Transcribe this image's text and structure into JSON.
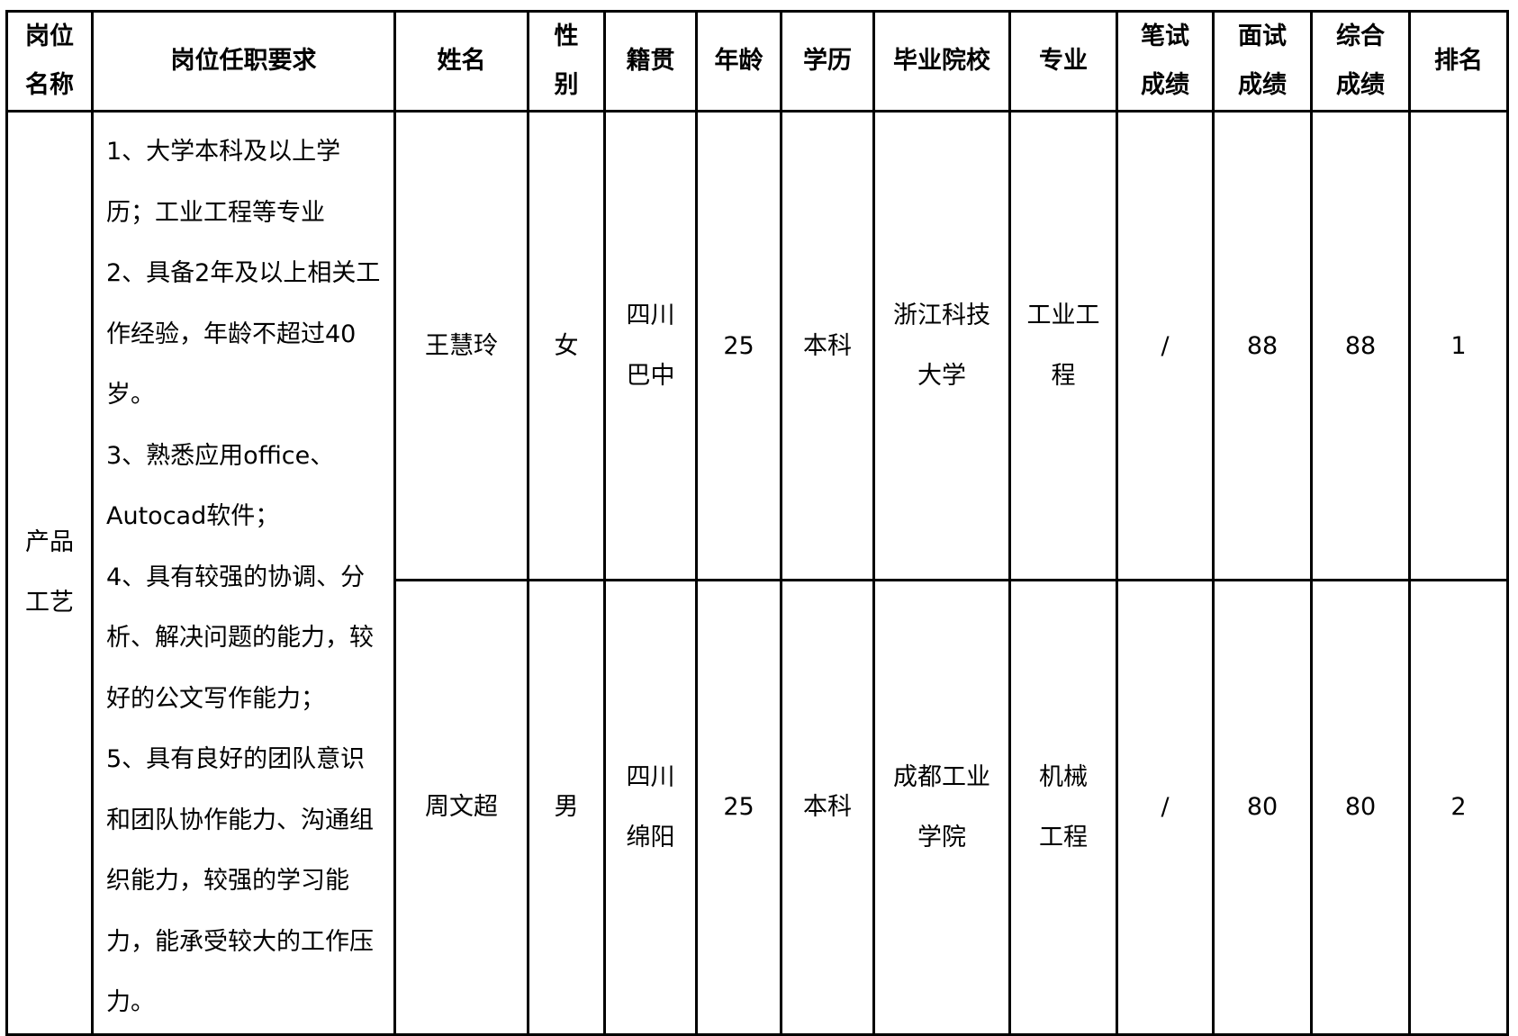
{
  "headers": [
    "岗位\n名称",
    "岗位任职要求",
    "姓名",
    "性\n别",
    "籍贯",
    "年龄",
    "学历",
    "毕业院校",
    "专业",
    "笔试\n成绩",
    "面试\n成绩",
    "综合\n成绩",
    "排名"
  ],
  "position": "产品\n工艺",
  "requirements_lines": [
    "1、大学本科及以上学",
    "历；工业工程等专业",
    "2、具备2年及以上相关工",
    "作经验，年龄不超过40",
    "岁。",
    "3、熟悉应用office、",
    "Autocad软件；",
    "4、具有较强的协调、分",
    "析、解决问题的能力，较",
    "好的公文写作能力；",
    "5、具有良好的团队意识",
    "和团队协作能力、沟通组",
    "织能力，较强的学习能",
    "力，能承受较大的工作压",
    "力。"
  ],
  "rows": [
    {
      "name": "王慧玲",
      "gender": "女",
      "origin": "四川\n巴中",
      "age": "25",
      "education": "本科",
      "school": "浙江科技\n大学",
      "major": "工业工\n程",
      "written": "/",
      "interview": "88",
      "total": "88",
      "rank": "1"
    },
    {
      "name": "周文超",
      "gender": "男",
      "origin": "四川\n绵阳",
      "age": "25",
      "education": "本科",
      "school": "成都工业\n学院",
      "major": "机械\n工程",
      "written": "/",
      "interview": "80",
      "total": "80",
      "rank": "2"
    }
  ]
}
